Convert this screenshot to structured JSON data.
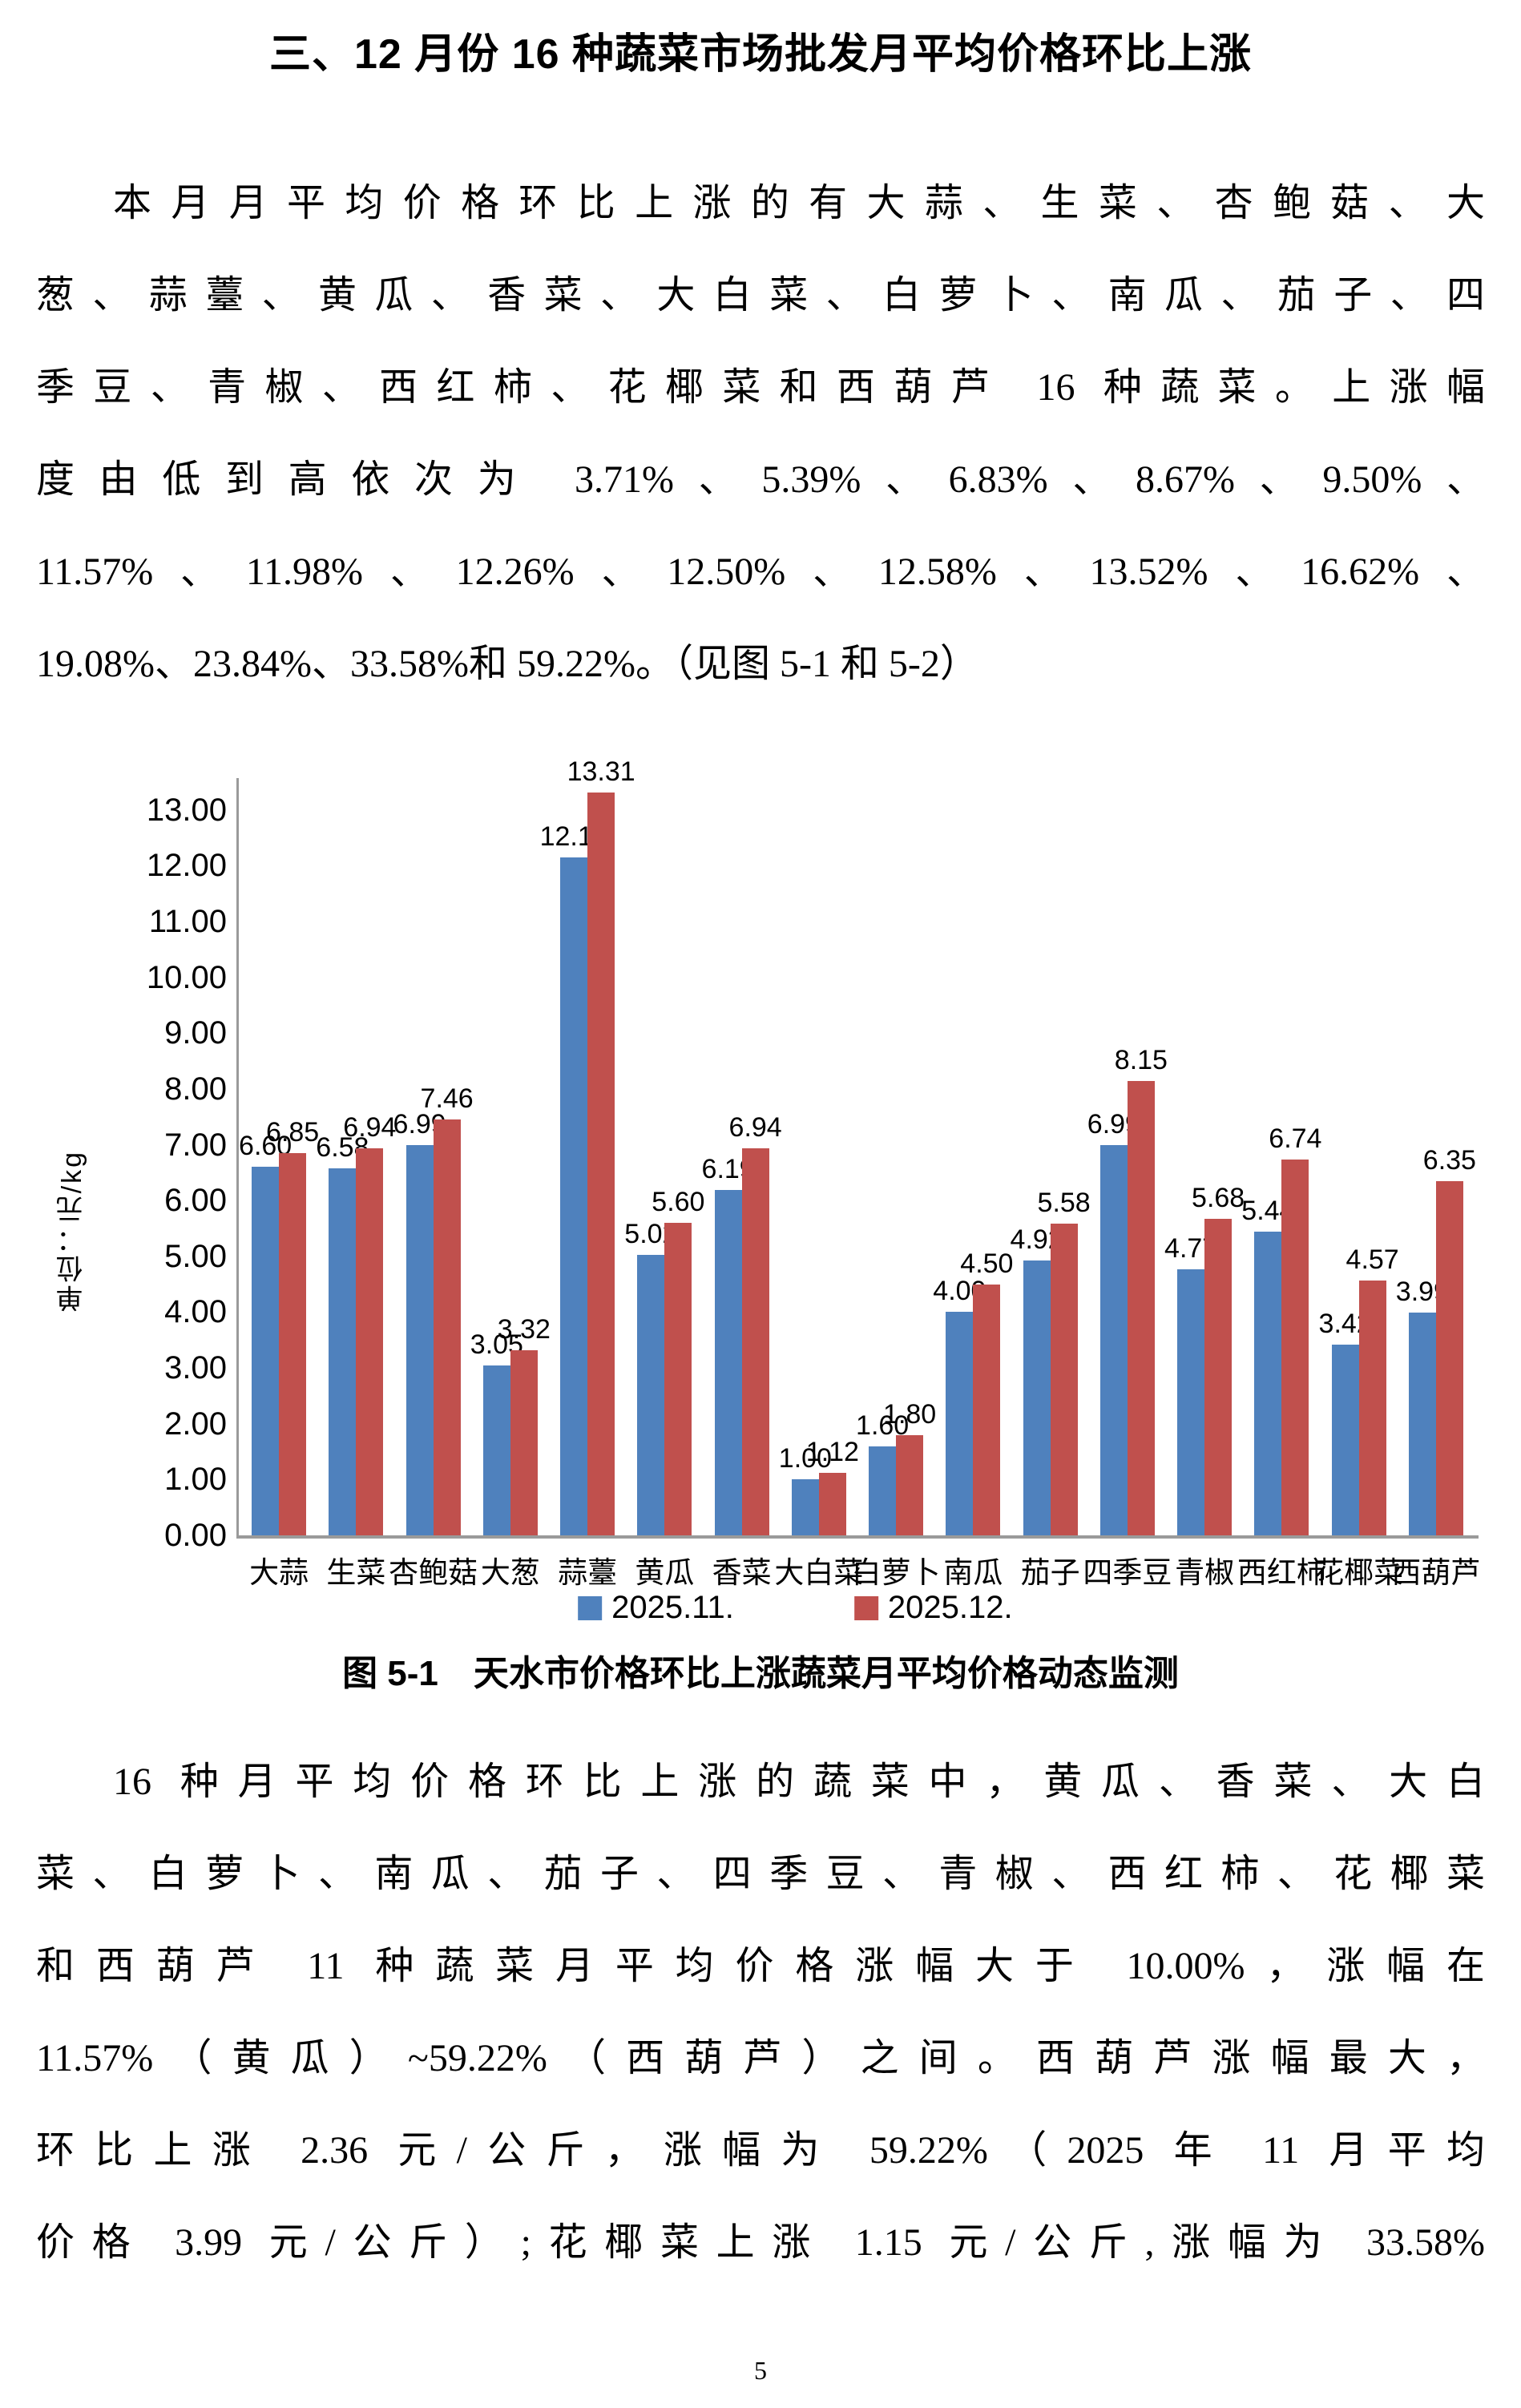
{
  "page": {
    "title": "三、12 月份 16 种蔬菜市场批发月平均价格环比上涨",
    "paragraph1_lines": [
      "本月月平均价格环比上涨的有大蒜、生菜、杏鲍菇、大",
      "葱、蒜薹、黄瓜、香菜、大白菜、白萝卜、南瓜、茄子、四",
      "季豆、青椒、西红柿、花椰菜和西葫芦 16 种蔬菜。上涨幅",
      "度由低到高依次为 3.71%、5.39%、6.83%、8.67%、9.50%、",
      "11.57%、11.98%、12.26%、12.50%、12.58%、13.52%、16.62%、",
      "19.08%、23.84%、33.58%和 59.22%。（见图 5-1 和 5-2）"
    ],
    "figure_caption": "图 5-1　天水市价格环比上涨蔬菜月平均价格动态监测",
    "paragraph2_lines": [
      "16 种月平均价格环比上涨的蔬菜中，黄瓜、香菜、大白",
      "菜、白萝卜、南瓜、茄子、四季豆、青椒、西红柿、花椰菜",
      "和西葫芦 11 种蔬菜月平均价格涨幅大于 10.00%，涨幅在",
      "11.57%（黄瓜）~59.22%（西葫芦）之间。西葫芦涨幅最大，",
      "环比上涨 2.36 元/公斤，涨幅为 59.22%（2025 年 11 月平均",
      "价格 3.99 元/公斤）;花椰菜上涨 1.15 元/公斤,涨幅为 33.58%"
    ],
    "page_number": "5"
  },
  "chart_data": {
    "type": "bar",
    "title": "图 5-1 天水市价格环比上涨蔬菜月平均价格动态监测",
    "ylabel": "单位：元/kg",
    "xlabel": "",
    "categories": [
      "大蒜",
      "生菜",
      "杏鲍菇",
      "大葱",
      "蒜薹",
      "黄瓜",
      "香菜",
      "大白菜",
      "白萝卜",
      "南瓜",
      "茄子",
      "四季豆",
      "青椒",
      "西红柿",
      "花椰菜",
      "西葫芦"
    ],
    "series": [
      {
        "name": "2025.11.",
        "color": "#4F81BD",
        "values": [
          6.6,
          6.58,
          6.99,
          3.05,
          12.15,
          5.02,
          6.19,
          1.0,
          1.6,
          4.0,
          4.92,
          6.99,
          4.77,
          5.44,
          3.42,
          3.99
        ]
      },
      {
        "name": "2025.12.",
        "color": "#C0504D",
        "values": [
          6.85,
          6.94,
          7.46,
          3.32,
          13.31,
          5.6,
          6.94,
          1.12,
          1.8,
          4.5,
          5.58,
          8.15,
          5.68,
          6.74,
          4.57,
          6.35
        ]
      }
    ],
    "ylim": [
      0,
      13.5
    ],
    "yticks": [
      "0.00",
      "1.00",
      "2.00",
      "3.00",
      "4.00",
      "5.00",
      "6.00",
      "7.00",
      "8.00",
      "9.00",
      "10.00",
      "11.00",
      "12.00",
      "13.00"
    ],
    "grid": false,
    "value_labels": true,
    "legend_position": "bottom",
    "axis_color": "#9a9a9a"
  }
}
